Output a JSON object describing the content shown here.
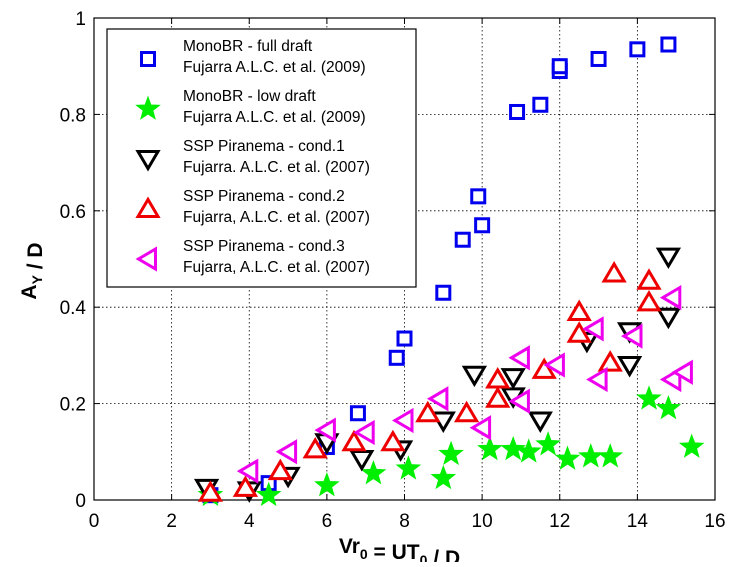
{
  "chart_data": {
    "type": "scatter",
    "xlabel": "Vr",
    "xlabel_sub": "0",
    "xlabel_mid": " = UT",
    "xlabel_sub2": "0",
    "xlabel_tail": " / D",
    "ylabel": "A",
    "ylabel_sub": "Y",
    "ylabel_tail": " / D",
    "xlim": [
      0,
      16
    ],
    "ylim": [
      0,
      1
    ],
    "xticks": [
      "0",
      "2",
      "4",
      "6",
      "8",
      "10",
      "12",
      "14",
      "16"
    ],
    "yticks": [
      "0",
      "0.2",
      "0.4",
      "0.6",
      "0.8",
      "1"
    ],
    "grid": true,
    "legend_position": "top-left",
    "series": [
      {
        "legend": [
          "MonoBR - full draft",
          "Fujarra A.L.C. et al. (2009)"
        ],
        "marker": "square",
        "color": "#0000ee",
        "points": [
          [
            3.0,
            0.01
          ],
          [
            4.5,
            0.035
          ],
          [
            6.0,
            0.11
          ],
          [
            6.8,
            0.18
          ],
          [
            7.8,
            0.295
          ],
          [
            8.0,
            0.335
          ],
          [
            9.0,
            0.43
          ],
          [
            9.5,
            0.54
          ],
          [
            9.9,
            0.63
          ],
          [
            10.0,
            0.57
          ],
          [
            10.9,
            0.805
          ],
          [
            11.5,
            0.82
          ],
          [
            12.0,
            0.89
          ],
          [
            12.0,
            0.9
          ],
          [
            13.0,
            0.915
          ],
          [
            14.0,
            0.935
          ],
          [
            14.8,
            0.945
          ]
        ]
      },
      {
        "legend": [
          "MonoBR - low draft",
          "Fujarra A.L.C. et al. (2009)"
        ],
        "marker": "star",
        "color": "#00ee00",
        "points": [
          [
            3.0,
            0.01
          ],
          [
            4.5,
            0.01
          ],
          [
            6.0,
            0.03
          ],
          [
            7.2,
            0.055
          ],
          [
            8.1,
            0.065
          ],
          [
            9.0,
            0.045
          ],
          [
            9.2,
            0.095
          ],
          [
            10.2,
            0.105
          ],
          [
            10.8,
            0.105
          ],
          [
            11.2,
            0.1
          ],
          [
            11.7,
            0.115
          ],
          [
            12.2,
            0.085
          ],
          [
            12.8,
            0.09
          ],
          [
            13.3,
            0.09
          ],
          [
            14.3,
            0.21
          ],
          [
            14.8,
            0.19
          ],
          [
            15.4,
            0.11
          ]
        ]
      },
      {
        "legend": [
          "SSP Piranema - cond.1",
          "Fujarra. A.L.C. et al. (2007)"
        ],
        "marker": "triangle-down",
        "color": "#000000",
        "points": [
          [
            2.9,
            0.025
          ],
          [
            4.0,
            0.02
          ],
          [
            5.0,
            0.05
          ],
          [
            6.0,
            0.12
          ],
          [
            6.9,
            0.085
          ],
          [
            7.9,
            0.105
          ],
          [
            9.0,
            0.165
          ],
          [
            9.8,
            0.26
          ],
          [
            10.8,
            0.215
          ],
          [
            10.8,
            0.255
          ],
          [
            11.5,
            0.165
          ],
          [
            12.7,
            0.33
          ],
          [
            13.8,
            0.35
          ],
          [
            13.8,
            0.28
          ],
          [
            14.8,
            0.505
          ],
          [
            14.8,
            0.38
          ]
        ]
      },
      {
        "legend": [
          "SSP Piranema - cond.2",
          "Fujarra, A.L.C. et al. (2007)"
        ],
        "marker": "triangle-up",
        "color": "#ee0000",
        "points": [
          [
            3.0,
            0.015
          ],
          [
            3.9,
            0.025
          ],
          [
            4.8,
            0.06
          ],
          [
            5.7,
            0.105
          ],
          [
            6.7,
            0.12
          ],
          [
            7.7,
            0.12
          ],
          [
            8.6,
            0.18
          ],
          [
            9.6,
            0.18
          ],
          [
            10.4,
            0.25
          ],
          [
            10.4,
            0.21
          ],
          [
            11.6,
            0.27
          ],
          [
            12.5,
            0.39
          ],
          [
            12.5,
            0.345
          ],
          [
            13.3,
            0.285
          ],
          [
            13.4,
            0.47
          ],
          [
            14.3,
            0.455
          ],
          [
            14.3,
            0.41
          ]
        ]
      },
      {
        "legend": [
          "SSP Piranema - cond.3",
          "Fujarra, A.L.C. et al. (2007)"
        ],
        "marker": "triangle-left",
        "color": "#ee00ee",
        "points": [
          [
            4.0,
            0.06
          ],
          [
            5.0,
            0.1
          ],
          [
            6.0,
            0.145
          ],
          [
            7.0,
            0.14
          ],
          [
            8.0,
            0.165
          ],
          [
            8.9,
            0.21
          ],
          [
            10.0,
            0.15
          ],
          [
            11.0,
            0.295
          ],
          [
            11.0,
            0.205
          ],
          [
            11.9,
            0.28
          ],
          [
            12.9,
            0.355
          ],
          [
            13.0,
            0.25
          ],
          [
            13.9,
            0.34
          ],
          [
            14.9,
            0.42
          ],
          [
            14.9,
            0.25
          ],
          [
            15.2,
            0.265
          ]
        ]
      }
    ]
  }
}
